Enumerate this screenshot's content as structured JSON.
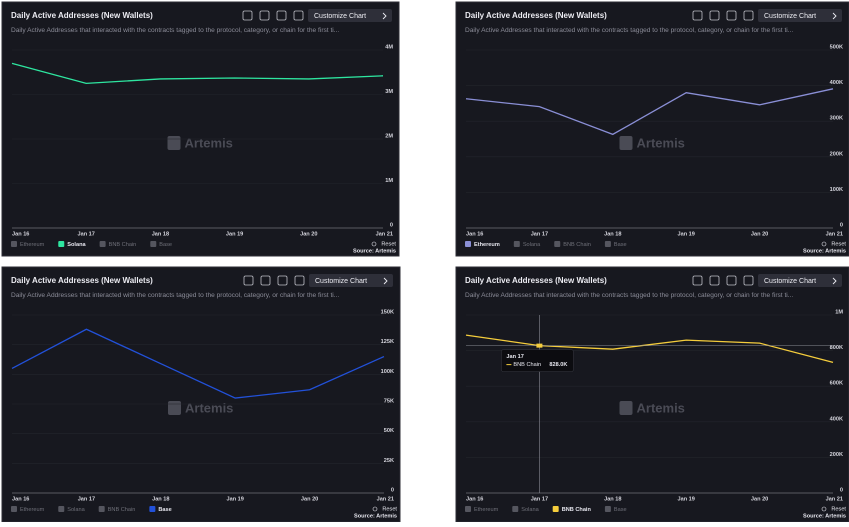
{
  "chart_data": [
    {
      "type": "line",
      "title": "Daily Active Addresses (New Wallets)",
      "subtitle": "Daily Active Addresses that interacted with the contracts tagged to the protocol, category, or chain for the first ti...",
      "button": "Customize Chart",
      "watermark": "Artemis",
      "reset": "Reset",
      "source": "Source: Artemis",
      "categories": [
        "Jan 16",
        "Jan 17",
        "Jan 18",
        "Jan 19",
        "Jan 20",
        "Jan 21"
      ],
      "series": [
        {
          "name": "Ethereum",
          "visible": false
        },
        {
          "name": "Solana",
          "visible": true,
          "color": "#2ee6a0",
          "values": [
            3700000,
            3250000,
            3350000,
            3370000,
            3350000,
            3420000
          ]
        },
        {
          "name": "BNB Chain",
          "visible": false
        },
        {
          "name": "Base",
          "visible": false
        }
      ],
      "ylim": [
        0,
        4000000
      ],
      "yticks": [
        0,
        {
          "value": 1000000,
          "label": "1M"
        },
        {
          "value": 2000000,
          "label": "2M"
        },
        {
          "value": 3000000,
          "label": "3M"
        },
        {
          "value": 4000000,
          "label": "4M"
        }
      ],
      "grid": true
    },
    {
      "type": "line",
      "title": "Daily Active Addresses (New Wallets)",
      "subtitle": "Daily Active Addresses that interacted with the contracts tagged to the protocol, category, or chain for the first ti...",
      "button": "Customize Chart",
      "watermark": "Artemis",
      "reset": "Reset",
      "source": "Source: Artemis",
      "categories": [
        "Jan 16",
        "Jan 17",
        "Jan 18",
        "Jan 19",
        "Jan 20",
        "Jan 21"
      ],
      "series": [
        {
          "name": "Ethereum",
          "visible": true,
          "color": "#8a8fd6",
          "values": [
            363000,
            341000,
            263000,
            380000,
            346000,
            391000
          ]
        },
        {
          "name": "Solana",
          "visible": false
        },
        {
          "name": "BNB Chain",
          "visible": false
        },
        {
          "name": "Base",
          "visible": false
        }
      ],
      "ylim": [
        0,
        500000
      ],
      "yticks": [
        0,
        {
          "value": 100000,
          "label": "100K"
        },
        {
          "value": 200000,
          "label": "200K"
        },
        {
          "value": 300000,
          "label": "300K"
        },
        {
          "value": 400000,
          "label": "400K"
        },
        {
          "value": 500000,
          "label": "500K"
        }
      ],
      "grid": true
    },
    {
      "type": "line",
      "title": "Daily Active Addresses (New Wallets)",
      "subtitle": "Daily Active Addresses that interacted with the contracts tagged to the protocol, category, or chain for the first ti...",
      "button": "Customize Chart",
      "watermark": "Artemis",
      "reset": "Reset",
      "source": "Source: Artemis",
      "categories": [
        "Jan 16",
        "Jan 17",
        "Jan 18",
        "Jan 19",
        "Jan 20",
        "Jan 21"
      ],
      "series": [
        {
          "name": "Ethereum",
          "visible": false
        },
        {
          "name": "Solana",
          "visible": false
        },
        {
          "name": "BNB Chain",
          "visible": false
        },
        {
          "name": "Base",
          "visible": true,
          "color": "#2251d9",
          "values": [
            105000,
            138000,
            109000,
            80000,
            87000,
            115000
          ]
        }
      ],
      "ylim": [
        0,
        150000
      ],
      "yticks": [
        0,
        {
          "value": 25000,
          "label": "25K"
        },
        {
          "value": 50000,
          "label": "50K"
        },
        {
          "value": 75000,
          "label": "75K"
        },
        {
          "value": 100000,
          "label": "100K"
        },
        {
          "value": 125000,
          "label": "125K"
        },
        {
          "value": 150000,
          "label": "150K"
        }
      ],
      "grid": true
    },
    {
      "type": "line",
      "title": "Daily Active Addresses (New Wallets)",
      "subtitle": "Daily Active Addresses that interacted with the contracts tagged to the protocol, category, or chain for the first ti...",
      "button": "Customize Chart",
      "watermark": "Artemis",
      "reset": "Reset",
      "source": "Source: Artemis",
      "categories": [
        "Jan 16",
        "Jan 17",
        "Jan 18",
        "Jan 19",
        "Jan 20",
        "Jan 21"
      ],
      "series": [
        {
          "name": "Ethereum",
          "visible": false
        },
        {
          "name": "Solana",
          "visible": false
        },
        {
          "name": "BNB Chain",
          "visible": true,
          "color": "#f5cd3c",
          "values": [
            887000,
            828000,
            808000,
            859000,
            842000,
            734000
          ],
          "value_labels": [
            null,
            "828.0K",
            null,
            null,
            null,
            null
          ]
        },
        {
          "name": "Base",
          "visible": false
        }
      ],
      "ylim": [
        0,
        1000000
      ],
      "yticks": [
        0,
        {
          "value": 200000,
          "label": "200K"
        },
        {
          "value": 400000,
          "label": "400K"
        },
        {
          "value": 600000,
          "label": "600K"
        },
        {
          "value": 800000,
          "label": "800K"
        },
        {
          "value": 1000000,
          "label": "1M"
        }
      ],
      "grid": true
    }
  ]
}
